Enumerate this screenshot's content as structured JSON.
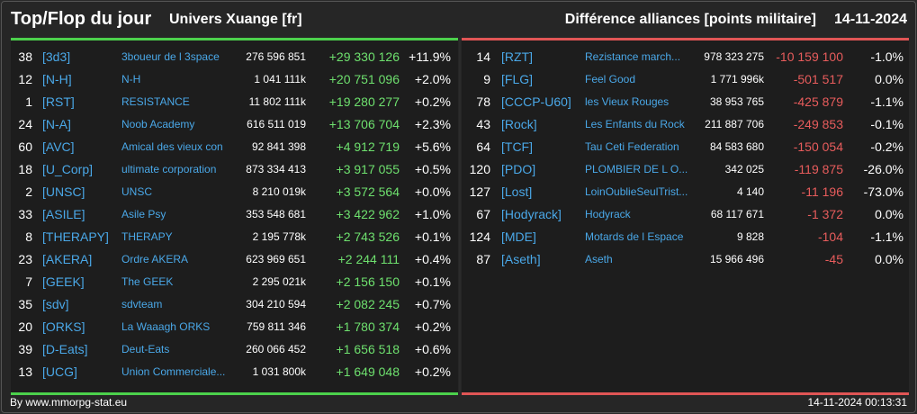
{
  "header": {
    "title": "Top/Flop du jour",
    "universe": "Univers Xuange [fr]",
    "subtitle": "Différence alliances [points militaire]",
    "date": "14-11-2024"
  },
  "colors": {
    "gain": "#6ee06e",
    "loss": "#e85c5c",
    "link": "#4aa8e8",
    "top_bar": "#4cd14c",
    "flop_bar": "#e05555"
  },
  "top": [
    {
      "rank": "38",
      "tag": "[3d3]",
      "name": "3boueur de l 3space",
      "points": "276 596 851",
      "diff": "+29 330 126",
      "pct": "+11.9%"
    },
    {
      "rank": "12",
      "tag": "[N-H]",
      "name": "N-H",
      "points": "1 041 111k",
      "diff": "+20 751 096",
      "pct": "+2.0%"
    },
    {
      "rank": "1",
      "tag": "[RST]",
      "name": "RESISTANCE",
      "points": "11 802 111k",
      "diff": "+19 280 277",
      "pct": "+0.2%"
    },
    {
      "rank": "24",
      "tag": "[N-A]",
      "name": "Noob Academy",
      "points": "616 511 019",
      "diff": "+13 706 704",
      "pct": "+2.3%"
    },
    {
      "rank": "60",
      "tag": "[AVC]",
      "name": "Amical des vieux con",
      "points": "92 841 398",
      "diff": "+4 912 719",
      "pct": "+5.6%"
    },
    {
      "rank": "18",
      "tag": "[U_Corp]",
      "name": "ultimate corporation",
      "points": "873 334 413",
      "diff": "+3 917 055",
      "pct": "+0.5%"
    },
    {
      "rank": "2",
      "tag": "[UNSC]",
      "name": "UNSC",
      "points": "8 210 019k",
      "diff": "+3 572 564",
      "pct": "+0.0%"
    },
    {
      "rank": "33",
      "tag": "[ASILE]",
      "name": "Asile Psy",
      "points": "353 548 681",
      "diff": "+3 422 962",
      "pct": "+1.0%"
    },
    {
      "rank": "8",
      "tag": "[THERAPY]",
      "name": "THERAPY",
      "points": "2 195 778k",
      "diff": "+2 743 526",
      "pct": "+0.1%"
    },
    {
      "rank": "23",
      "tag": "[AKERA]",
      "name": "Ordre AKERA",
      "points": "623 969 651",
      "diff": "+2 244 111",
      "pct": "+0.4%"
    },
    {
      "rank": "7",
      "tag": "[GEEK]",
      "name": "The GEEK",
      "points": "2 295 021k",
      "diff": "+2 156 150",
      "pct": "+0.1%"
    },
    {
      "rank": "35",
      "tag": "[sdv]",
      "name": "sdvteam",
      "points": "304 210 594",
      "diff": "+2 082 245",
      "pct": "+0.7%"
    },
    {
      "rank": "20",
      "tag": "[ORKS]",
      "name": "La Waaagh ORKS",
      "points": "759 811 346",
      "diff": "+1 780 374",
      "pct": "+0.2%"
    },
    {
      "rank": "39",
      "tag": "[D-Eats]",
      "name": "Deut-Eats",
      "points": "260 066 452",
      "diff": "+1 656 518",
      "pct": "+0.6%"
    },
    {
      "rank": "13",
      "tag": "[UCG]",
      "name": "Union Commerciale...",
      "points": "1 031 800k",
      "diff": "+1 649 048",
      "pct": "+0.2%"
    }
  ],
  "flop": [
    {
      "rank": "14",
      "tag": "[RZT]",
      "name": "Rezistance march...",
      "points": "978 323 275",
      "diff": "-10 159 100",
      "pct": "-1.0%"
    },
    {
      "rank": "9",
      "tag": "[FLG]",
      "name": "Feel Good",
      "points": "1 771 996k",
      "diff": "-501 517",
      "pct": "0.0%"
    },
    {
      "rank": "78",
      "tag": "[CCCP-U60]",
      "name": "les Vieux Rouges",
      "points": "38 953 765",
      "diff": "-425 879",
      "pct": "-1.1%"
    },
    {
      "rank": "43",
      "tag": "[Rock]",
      "name": "Les Enfants du Rock",
      "points": "211 887 706",
      "diff": "-249 853",
      "pct": "-0.1%"
    },
    {
      "rank": "64",
      "tag": "[TCF]",
      "name": "Tau Ceti Federation",
      "points": "84 583 680",
      "diff": "-150 054",
      "pct": "-0.2%"
    },
    {
      "rank": "120",
      "tag": "[PDO]",
      "name": "PLOMBIER DE L O...",
      "points": "342 025",
      "diff": "-119 875",
      "pct": "-26.0%"
    },
    {
      "rank": "127",
      "tag": "[Lost]",
      "name": "LoinOublieSeulTrist...",
      "points": "4 140",
      "diff": "-11 196",
      "pct": "-73.0%"
    },
    {
      "rank": "67",
      "tag": "[Hodyrack]",
      "name": "Hodyrack",
      "points": "68 117 671",
      "diff": "-1 372",
      "pct": "0.0%"
    },
    {
      "rank": "124",
      "tag": "[MDE]",
      "name": "Motards de l Espace",
      "points": "9 828",
      "diff": "-104",
      "pct": "-1.1%"
    },
    {
      "rank": "87",
      "tag": "[Aseth]",
      "name": "Aseth",
      "points": "15 966 496",
      "diff": "-45",
      "pct": "0.0%"
    }
  ],
  "footer": {
    "source": "By www.mmorpg-stat.eu",
    "timestamp": "14-11-2024 00:13:31"
  }
}
